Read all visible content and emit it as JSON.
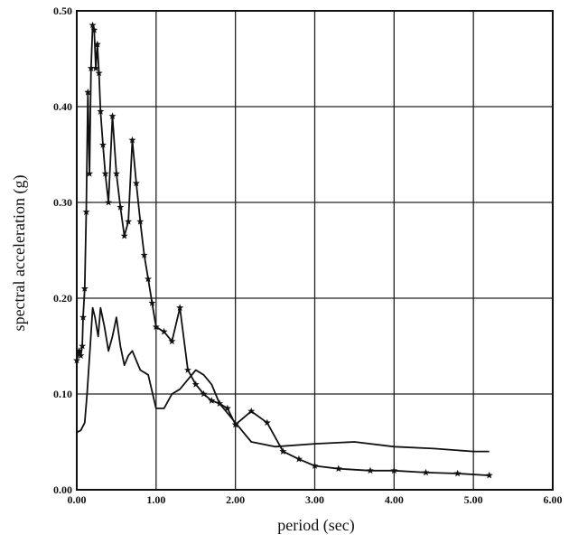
{
  "chart_data": {
    "type": "line",
    "title": "",
    "xlabel": "period (sec)",
    "ylabel": "spectral acceleration  (g)",
    "xlim": [
      0,
      6
    ],
    "ylim": [
      0,
      0.5
    ],
    "x_ticks": [
      0,
      1,
      2,
      3,
      4,
      5,
      6
    ],
    "x_tick_labels": [
      "0.00",
      "1.00",
      "2.00",
      "3.00",
      "4.00",
      "5.00",
      "6.00"
    ],
    "y_ticks": [
      0,
      0.1,
      0.2,
      0.3,
      0.4,
      0.5
    ],
    "y_tick_labels": [
      "0.00",
      "0.10",
      "0.20",
      "0.30",
      "0.40",
      "0.50"
    ],
    "grid": true,
    "legend": "none",
    "series": [
      {
        "marker": "star",
        "x": [
          0.0,
          0.03,
          0.05,
          0.07,
          0.08,
          0.1,
          0.12,
          0.14,
          0.16,
          0.18,
          0.2,
          0.22,
          0.24,
          0.26,
          0.28,
          0.3,
          0.33,
          0.36,
          0.4,
          0.45,
          0.5,
          0.55,
          0.6,
          0.65,
          0.7,
          0.75,
          0.8,
          0.85,
          0.9,
          0.95,
          1.0,
          1.1,
          1.2,
          1.3,
          1.4,
          1.5,
          1.6,
          1.7,
          1.8,
          1.9,
          2.0,
          2.2,
          2.4,
          2.6,
          2.8,
          3.0,
          3.3,
          3.7,
          4.0,
          4.4,
          4.8,
          5.2
        ],
        "y": [
          0.135,
          0.145,
          0.14,
          0.15,
          0.18,
          0.21,
          0.29,
          0.415,
          0.33,
          0.44,
          0.485,
          0.48,
          0.44,
          0.465,
          0.435,
          0.395,
          0.36,
          0.33,
          0.3,
          0.39,
          0.33,
          0.295,
          0.265,
          0.28,
          0.365,
          0.32,
          0.28,
          0.245,
          0.22,
          0.195,
          0.17,
          0.165,
          0.155,
          0.19,
          0.125,
          0.11,
          0.1,
          0.093,
          0.09,
          0.085,
          0.068,
          0.082,
          0.07,
          0.04,
          0.032,
          0.025,
          0.022,
          0.02,
          0.02,
          0.018,
          0.017,
          0.015
        ]
      },
      {
        "marker": "none",
        "x": [
          0.0,
          0.05,
          0.1,
          0.13,
          0.17,
          0.2,
          0.23,
          0.27,
          0.3,
          0.35,
          0.4,
          0.45,
          0.5,
          0.55,
          0.6,
          0.65,
          0.7,
          0.8,
          0.9,
          1.0,
          1.1,
          1.2,
          1.3,
          1.4,
          1.5,
          1.6,
          1.7,
          1.8,
          1.9,
          2.0,
          2.2,
          2.5,
          3.0,
          3.5,
          4.0,
          4.5,
          5.0,
          5.2
        ],
        "y": [
          0.06,
          0.062,
          0.07,
          0.1,
          0.15,
          0.19,
          0.18,
          0.16,
          0.19,
          0.17,
          0.145,
          0.16,
          0.18,
          0.15,
          0.13,
          0.14,
          0.145,
          0.125,
          0.12,
          0.085,
          0.085,
          0.1,
          0.105,
          0.115,
          0.125,
          0.12,
          0.11,
          0.09,
          0.08,
          0.07,
          0.05,
          0.045,
          0.048,
          0.05,
          0.045,
          0.043,
          0.04,
          0.04
        ]
      }
    ]
  }
}
